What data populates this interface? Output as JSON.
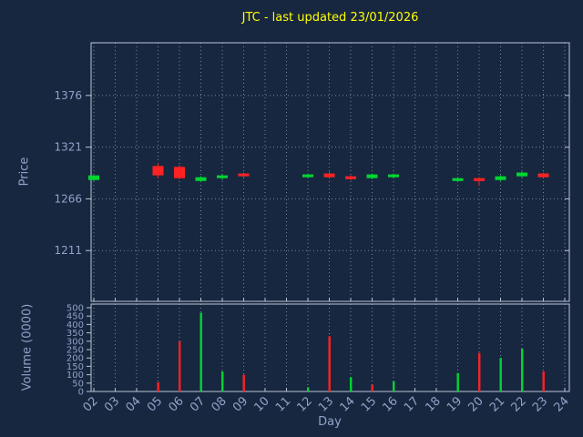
{
  "title": "JTC - last updated 23/01/2026",
  "colors": {
    "background": "#182740",
    "title_text": "#ffff00",
    "axis_text": "#8fa3c8",
    "grid": "#7a849a",
    "border": "#bac4d4",
    "up": "#00d532",
    "down": "#ff2222"
  },
  "chart_data": {
    "type": "candlestick",
    "title": "JTC - last updated 23/01/2026",
    "xlabel": "Day",
    "price_ylabel": "Price",
    "volume_ylabel": "Volume (0000)",
    "x_ticks": [
      "02",
      "03",
      "04",
      "05",
      "06",
      "07",
      "08",
      "09",
      "10",
      "11",
      "12",
      "13",
      "14",
      "15",
      "16",
      "17",
      "18",
      "19",
      "20",
      "21",
      "22",
      "23",
      "24"
    ],
    "price_ticks": [
      1376,
      1321,
      1266,
      1211
    ],
    "price_range": [
      1157,
      1432
    ],
    "volume_ticks": [
      0,
      50,
      100,
      150,
      200,
      250,
      300,
      350,
      400,
      450,
      500
    ],
    "volume_range": [
      0,
      500
    ],
    "grid": "dotted",
    "candles": [
      {
        "day": "02",
        "open": 1286,
        "high": 1291,
        "low": 1285,
        "close": 1291,
        "volume": 0
      },
      {
        "day": "05",
        "open": 1301,
        "high": 1304,
        "low": 1288,
        "close": 1291,
        "volume": 55
      },
      {
        "day": "06",
        "open": 1300,
        "high": 1302,
        "low": 1287,
        "close": 1288,
        "volume": 300
      },
      {
        "day": "07",
        "open": 1285,
        "high": 1290,
        "low": 1284,
        "close": 1289,
        "volume": 470
      },
      {
        "day": "08",
        "open": 1288,
        "high": 1292,
        "low": 1286,
        "close": 1291,
        "volume": 120
      },
      {
        "day": "09",
        "open": 1293,
        "high": 1294,
        "low": 1289,
        "close": 1290,
        "volume": 100
      },
      {
        "day": "12",
        "open": 1289,
        "high": 1293,
        "low": 1288,
        "close": 1292,
        "volume": 25
      },
      {
        "day": "13",
        "open": 1293,
        "high": 1295,
        "low": 1288,
        "close": 1289,
        "volume": 330
      },
      {
        "day": "14",
        "open": 1290,
        "high": 1291,
        "low": 1286,
        "close": 1287,
        "volume": 85,
        "vcolor": "up"
      },
      {
        "day": "15",
        "open": 1288,
        "high": 1293,
        "low": 1287,
        "close": 1292,
        "volume": 40,
        "vcolor": "down"
      },
      {
        "day": "16",
        "open": 1289,
        "high": 1293,
        "low": 1288,
        "close": 1292,
        "volume": 60
      },
      {
        "day": "19",
        "open": 1285,
        "high": 1289,
        "low": 1284,
        "close": 1288,
        "volume": 110
      },
      {
        "day": "20",
        "open": 1288,
        "high": 1289,
        "low": 1280,
        "close": 1285,
        "volume": 230
      },
      {
        "day": "21",
        "open": 1286,
        "high": 1291,
        "low": 1285,
        "close": 1290,
        "volume": 200
      },
      {
        "day": "22",
        "open": 1290,
        "high": 1295,
        "low": 1289,
        "close": 1294,
        "volume": 255
      },
      {
        "day": "23",
        "open": 1293,
        "high": 1294,
        "low": 1288,
        "close": 1289,
        "volume": 120
      }
    ]
  }
}
